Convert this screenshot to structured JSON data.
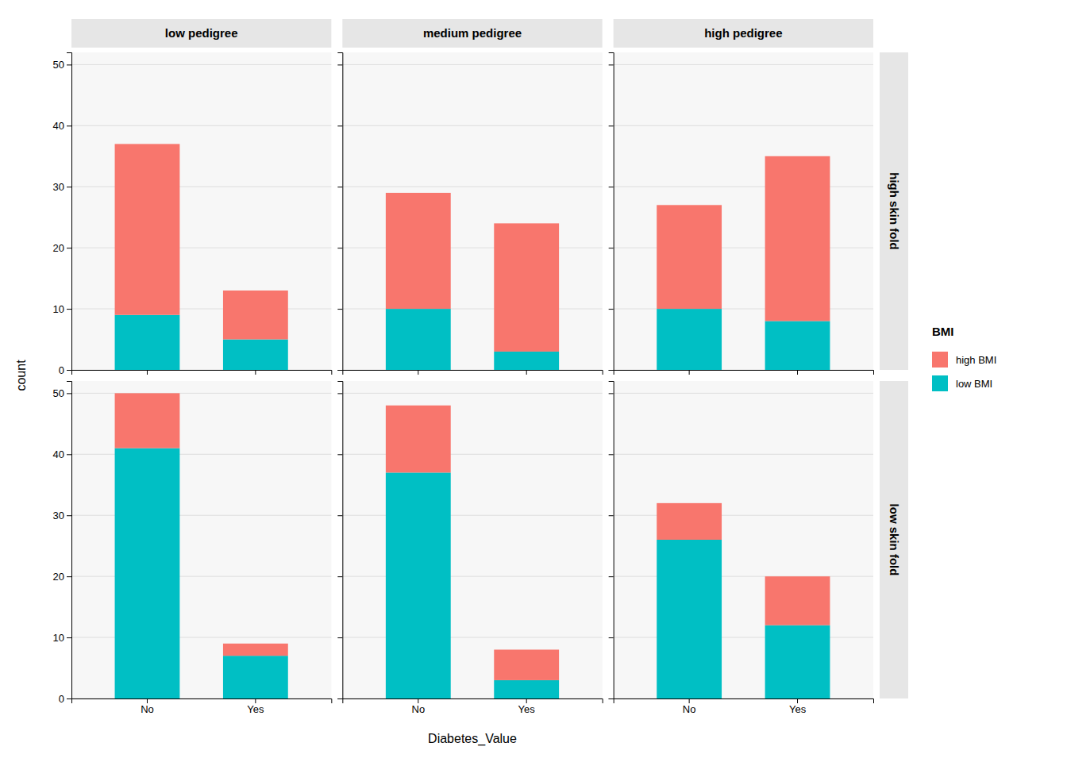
{
  "chart_data": {
    "type": "bar",
    "stacked": true,
    "xlabel": "Diabetes_Value",
    "ylabel": "count",
    "legend_title": "BMI",
    "legend": "right",
    "grid": true,
    "facet_columns": [
      "low pedigree",
      "medium pedigree",
      "high pedigree"
    ],
    "facet_rows": [
      "high skin fold",
      "low skin fold"
    ],
    "categories": [
      "No",
      "Yes"
    ],
    "series": [
      {
        "name": "high BMI",
        "color": "#F8766D",
        "values": [
          [
            [
              28,
              8
            ],
            [
              19,
              21
            ],
            [
              17,
              27
            ]
          ],
          [
            [
              9,
              2
            ],
            [
              11,
              5
            ],
            [
              6,
              8
            ]
          ]
        ]
      },
      {
        "name": "low BMI",
        "color": "#00BFC4",
        "values": [
          [
            [
              9,
              5
            ],
            [
              10,
              3
            ],
            [
              10,
              8
            ]
          ],
          [
            [
              41,
              7
            ],
            [
              37,
              3
            ],
            [
              26,
              12
            ]
          ]
        ]
      }
    ],
    "ylim": [
      0,
      52
    ],
    "yticks": [
      0,
      10,
      20,
      30,
      40,
      50
    ]
  }
}
